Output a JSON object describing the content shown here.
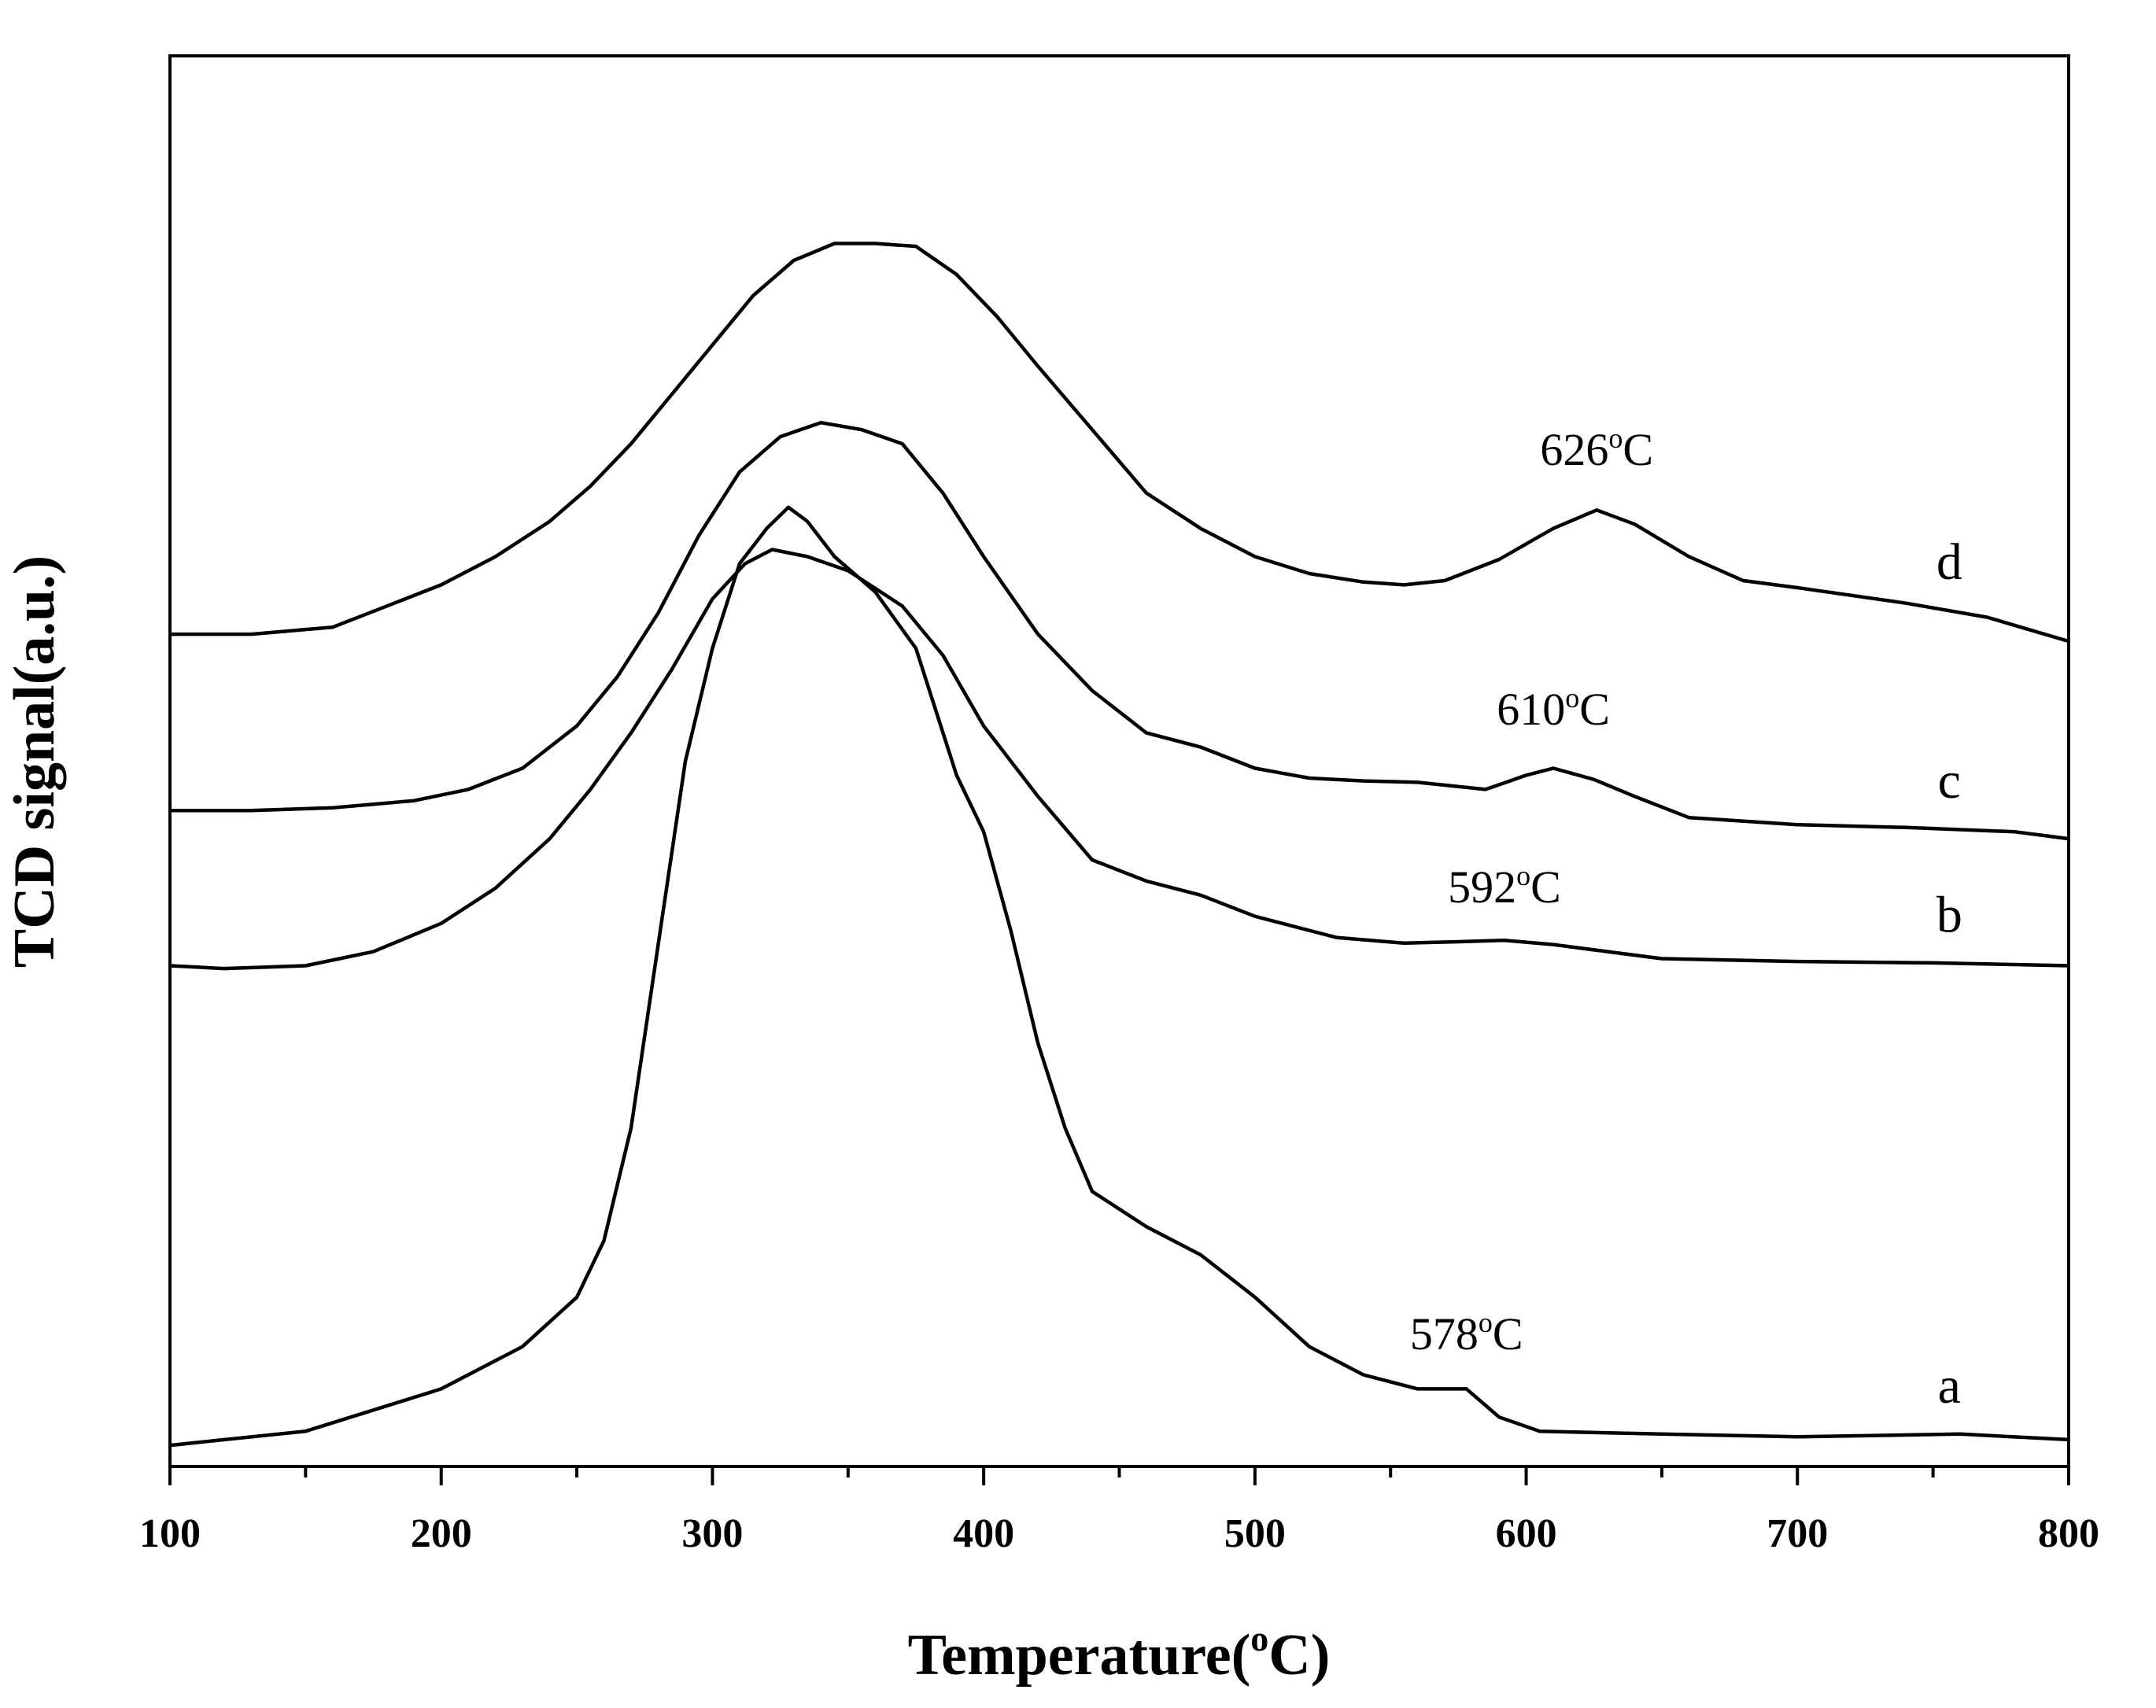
{
  "chart_data": {
    "type": "line",
    "title": "",
    "xlabel": "Temperature(",
    "xlabel_degree": "o",
    "xlabel_unit": "C)",
    "ylabel": "TCD signal(a.u.)",
    "xlim": [
      100,
      800
    ],
    "ylim": [
      0,
      100
    ],
    "x_ticks": [
      100,
      200,
      300,
      400,
      500,
      600,
      700,
      800
    ],
    "x_tick_labels": [
      "100",
      "200",
      "300",
      "400",
      "500",
      "600",
      "700",
      "800"
    ],
    "y_ticks_shown": false,
    "grid": false,
    "legend": "none (curves labelled inline at right)",
    "series": [
      {
        "name": "a",
        "points": [
          [
            100,
            1.5
          ],
          [
            150,
            2.5
          ],
          [
            200,
            5.5
          ],
          [
            230,
            8.5
          ],
          [
            250,
            12
          ],
          [
            260,
            16
          ],
          [
            270,
            24
          ],
          [
            280,
            37
          ],
          [
            290,
            50
          ],
          [
            300,
            58
          ],
          [
            310,
            64
          ],
          [
            320,
            66.5
          ],
          [
            328,
            68
          ],
          [
            335,
            67
          ],
          [
            345,
            64.5
          ],
          [
            360,
            62
          ],
          [
            375,
            58
          ],
          [
            390,
            49
          ],
          [
            400,
            45
          ],
          [
            410,
            38
          ],
          [
            420,
            30
          ],
          [
            430,
            24
          ],
          [
            440,
            19.5
          ],
          [
            460,
            17
          ],
          [
            480,
            15
          ],
          [
            500,
            12
          ],
          [
            520,
            8.5
          ],
          [
            540,
            6.5
          ],
          [
            560,
            5.5
          ],
          [
            578,
            5.5
          ],
          [
            590,
            3.5
          ],
          [
            605,
            2.5
          ],
          [
            650,
            2.3
          ],
          [
            700,
            2.1
          ],
          [
            760,
            2.3
          ],
          [
            800,
            1.9
          ]
        ]
      },
      {
        "name": "b",
        "points": [
          [
            100,
            35.5
          ],
          [
            120,
            35.3
          ],
          [
            150,
            35.5
          ],
          [
            175,
            36.5
          ],
          [
            200,
            38.5
          ],
          [
            220,
            41
          ],
          [
            240,
            44.5
          ],
          [
            255,
            48
          ],
          [
            270,
            52
          ],
          [
            285,
            56.5
          ],
          [
            300,
            61.5
          ],
          [
            312,
            64
          ],
          [
            322,
            65
          ],
          [
            335,
            64.5
          ],
          [
            350,
            63.5
          ],
          [
            370,
            61
          ],
          [
            385,
            57.5
          ],
          [
            400,
            52.5
          ],
          [
            420,
            47.5
          ],
          [
            440,
            43
          ],
          [
            460,
            41.5
          ],
          [
            480,
            40.5
          ],
          [
            500,
            39
          ],
          [
            530,
            37.5
          ],
          [
            555,
            37.1
          ],
          [
            575,
            37.2
          ],
          [
            592,
            37.3
          ],
          [
            610,
            37
          ],
          [
            630,
            36.5
          ],
          [
            650,
            36
          ],
          [
            700,
            35.8
          ],
          [
            750,
            35.7
          ],
          [
            800,
            35.5
          ]
        ]
      },
      {
        "name": "c",
        "points": [
          [
            100,
            46.5
          ],
          [
            130,
            46.5
          ],
          [
            160,
            46.7
          ],
          [
            190,
            47.2
          ],
          [
            210,
            48
          ],
          [
            230,
            49.5
          ],
          [
            250,
            52.5
          ],
          [
            265,
            56
          ],
          [
            280,
            60.5
          ],
          [
            295,
            66
          ],
          [
            310,
            70.5
          ],
          [
            325,
            73
          ],
          [
            340,
            74
          ],
          [
            355,
            73.5
          ],
          [
            370,
            72.5
          ],
          [
            385,
            69
          ],
          [
            400,
            64.5
          ],
          [
            420,
            59
          ],
          [
            440,
            55
          ],
          [
            460,
            52
          ],
          [
            480,
            51
          ],
          [
            500,
            49.5
          ],
          [
            520,
            48.8
          ],
          [
            540,
            48.6
          ],
          [
            560,
            48.5
          ],
          [
            585,
            48
          ],
          [
            600,
            49
          ],
          [
            610,
            49.5
          ],
          [
            625,
            48.7
          ],
          [
            640,
            47.5
          ],
          [
            660,
            46
          ],
          [
            700,
            45.5
          ],
          [
            740,
            45.3
          ],
          [
            780,
            45
          ],
          [
            800,
            44.5
          ]
        ]
      },
      {
        "name": "d",
        "points": [
          [
            100,
            59
          ],
          [
            130,
            59
          ],
          [
            160,
            59.5
          ],
          [
            180,
            61
          ],
          [
            200,
            62.5
          ],
          [
            220,
            64.5
          ],
          [
            240,
            67
          ],
          [
            255,
            69.5
          ],
          [
            270,
            72.5
          ],
          [
            285,
            76
          ],
          [
            300,
            79.5
          ],
          [
            315,
            83
          ],
          [
            330,
            85.5
          ],
          [
            345,
            86.7
          ],
          [
            360,
            86.7
          ],
          [
            375,
            86.5
          ],
          [
            390,
            84.5
          ],
          [
            405,
            81.5
          ],
          [
            420,
            78
          ],
          [
            440,
            73.5
          ],
          [
            460,
            69
          ],
          [
            480,
            66.5
          ],
          [
            500,
            64.5
          ],
          [
            520,
            63.3
          ],
          [
            540,
            62.7
          ],
          [
            555,
            62.5
          ],
          [
            570,
            62.8
          ],
          [
            590,
            64.3
          ],
          [
            610,
            66.5
          ],
          [
            626,
            67.8
          ],
          [
            640,
            66.8
          ],
          [
            660,
            64.5
          ],
          [
            680,
            62.8
          ],
          [
            700,
            62.3
          ],
          [
            740,
            61.2
          ],
          [
            770,
            60.2
          ],
          [
            800,
            58.5
          ]
        ]
      }
    ],
    "annotations": [
      {
        "series": "a",
        "value": "578",
        "degree": "o",
        "unit": "C",
        "x": 578,
        "y": 8.3
      },
      {
        "series": "b",
        "value": "592",
        "degree": "o",
        "unit": "C",
        "x": 592,
        "y": 40.0
      },
      {
        "series": "c",
        "value": "610",
        "degree": "o",
        "unit": "C",
        "x": 610,
        "y": 52.6
      },
      {
        "series": "d",
        "value": "626",
        "degree": "o",
        "unit": "C",
        "x": 626,
        "y": 71.0
      }
    ],
    "curve_label_x": 756
  }
}
